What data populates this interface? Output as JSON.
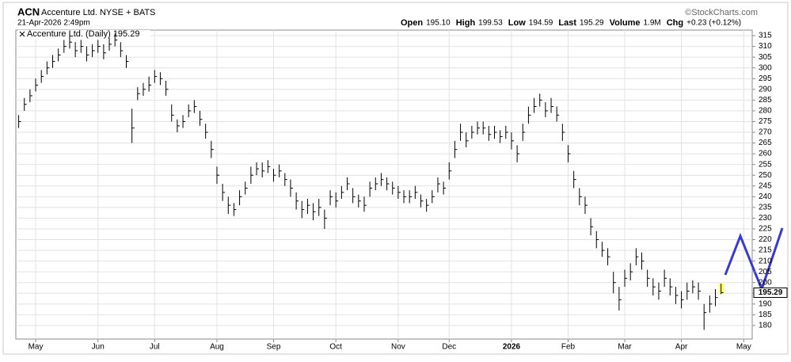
{
  "chart_data": {
    "type": "ohlc",
    "symbol": "ACN",
    "name": "Accenture Ltd. NYSE + BATS",
    "source": "©StockCharts.com",
    "timestamp": "21-Apr-2026 2:49pm",
    "quote": [
      {
        "label": "Open",
        "value": "195.10"
      },
      {
        "label": "High",
        "value": "199.53"
      },
      {
        "label": "Low",
        "value": "194.59"
      },
      {
        "label": "Last",
        "value": "195.29"
      },
      {
        "label": "Volume",
        "value": "1.9M"
      },
      {
        "label": "Chg",
        "value": "+0.23 (+0.12%)"
      }
    ],
    "legend": "Accenture Ltd. (Daily) 195.29",
    "color": "#000000",
    "highlight_color": "#ffff66",
    "grid": true,
    "ylim": [
      173.7,
      317.6
    ],
    "yticks": [
      180,
      185,
      190,
      195,
      200,
      205,
      210,
      215,
      220,
      225,
      230,
      235,
      240,
      245,
      250,
      255,
      260,
      265,
      270,
      275,
      280,
      285,
      290,
      295,
      300,
      305,
      310,
      315
    ],
    "categories": [
      null,
      null,
      null,
      "May",
      null,
      null,
      null,
      null,
      null,
      null,
      null,
      null,
      null,
      null,
      "Jun",
      null,
      null,
      null,
      null,
      null,
      null,
      null,
      null,
      null,
      "Jul",
      null,
      null,
      null,
      null,
      null,
      null,
      null,
      null,
      null,
      null,
      "Aug",
      null,
      null,
      null,
      null,
      null,
      null,
      null,
      null,
      null,
      "Sep",
      null,
      null,
      null,
      null,
      null,
      null,
      null,
      null,
      null,
      null,
      "Oct",
      null,
      null,
      null,
      null,
      null,
      null,
      null,
      null,
      null,
      null,
      "Nov",
      null,
      null,
      null,
      null,
      null,
      null,
      null,
      null,
      "Dec",
      null,
      null,
      null,
      null,
      null,
      null,
      null,
      null,
      null,
      null,
      "2026",
      null,
      null,
      null,
      null,
      null,
      null,
      null,
      null,
      null,
      "Feb",
      null,
      null,
      null,
      null,
      null,
      null,
      null,
      null,
      null,
      "Mar",
      null,
      null,
      null,
      null,
      null,
      null,
      null,
      null,
      null,
      "Apr",
      null,
      null,
      null,
      null,
      null,
      null,
      null,
      null,
      null,
      null,
      "May",
      null
    ],
    "high": [
      278,
      286,
      290,
      295,
      299,
      303,
      306,
      309,
      313,
      316,
      312,
      313,
      310,
      311,
      313,
      311,
      314,
      316,
      312,
      306,
      281,
      291,
      293,
      296,
      299,
      298,
      294,
      283,
      276,
      278,
      283,
      285,
      280,
      274,
      266,
      254,
      246,
      240,
      237,
      243,
      247,
      254,
      256,
      256,
      257,
      253,
      255,
      251,
      248,
      242,
      238,
      239,
      237,
      239,
      234,
      243,
      242,
      245,
      249,
      244,
      241,
      240,
      247,
      249,
      251,
      249,
      247,
      245,
      243,
      243,
      245,
      241,
      239,
      243,
      249,
      247,
      256,
      266,
      274,
      270,
      273,
      275,
      275,
      273,
      273,
      271,
      273,
      270,
      264,
      274,
      282,
      286,
      288,
      284,
      286,
      282,
      274,
      264,
      252,
      244,
      240,
      230,
      224,
      219,
      216,
      205,
      198,
      206,
      209,
      216,
      214,
      206,
      202,
      200,
      206,
      202,
      198,
      196,
      200,
      201,
      200,
      190,
      194,
      197,
      199.53,
      null,
      null,
      null,
      null,
      null
    ],
    "low": [
      272,
      280,
      284,
      289,
      293,
      297,
      300,
      303,
      307,
      309,
      305,
      307,
      303,
      305,
      307,
      304,
      308,
      310,
      305,
      300,
      265,
      285,
      287,
      289,
      293,
      292,
      287,
      275,
      270,
      272,
      277,
      279,
      273,
      267,
      258,
      246,
      238,
      232,
      231,
      236,
      241,
      246,
      250,
      249,
      251,
      247,
      249,
      245,
      240,
      234,
      230,
      232,
      229,
      231,
      225,
      236,
      235,
      239,
      243,
      237,
      235,
      233,
      240,
      243,
      245,
      243,
      241,
      239,
      237,
      237,
      239,
      235,
      233,
      237,
      242,
      241,
      248,
      258,
      266,
      263,
      267,
      269,
      269,
      266,
      267,
      265,
      267,
      262,
      256,
      266,
      274,
      279,
      282,
      277,
      279,
      275,
      266,
      256,
      244,
      236,
      232,
      222,
      216,
      212,
      208,
      195,
      187,
      198,
      201,
      208,
      206,
      198,
      194,
      192,
      198,
      194,
      190,
      188,
      192,
      195,
      192,
      178,
      186,
      189,
      194.59,
      null,
      null,
      null,
      null,
      null
    ],
    "close": [
      275,
      283,
      287,
      292,
      296,
      300,
      303,
      306,
      310,
      312,
      308,
      310,
      306,
      308,
      310,
      307,
      311,
      313,
      308,
      303,
      272,
      288,
      290,
      292,
      296,
      295,
      290,
      278,
      273,
      275,
      280,
      282,
      276,
      270,
      262,
      250,
      242,
      236,
      234,
      240,
      244,
      250,
      253,
      252,
      254,
      250,
      252,
      248,
      244,
      238,
      234,
      236,
      233,
      235,
      230,
      240,
      238,
      242,
      246,
      240,
      238,
      236,
      244,
      246,
      248,
      246,
      244,
      242,
      240,
      240,
      242,
      238,
      236,
      240,
      246,
      244,
      252,
      262,
      270,
      266,
      270,
      272,
      272,
      269,
      270,
      268,
      270,
      266,
      260,
      270,
      278,
      282,
      285,
      280,
      282,
      278,
      270,
      260,
      248,
      240,
      236,
      226,
      220,
      215,
      212,
      200,
      192,
      202,
      205,
      212,
      210,
      202,
      198,
      196,
      202,
      198,
      194,
      192,
      196,
      198,
      196,
      186,
      190,
      193,
      195.29,
      null,
      null,
      null,
      null,
      null
    ]
  }
}
